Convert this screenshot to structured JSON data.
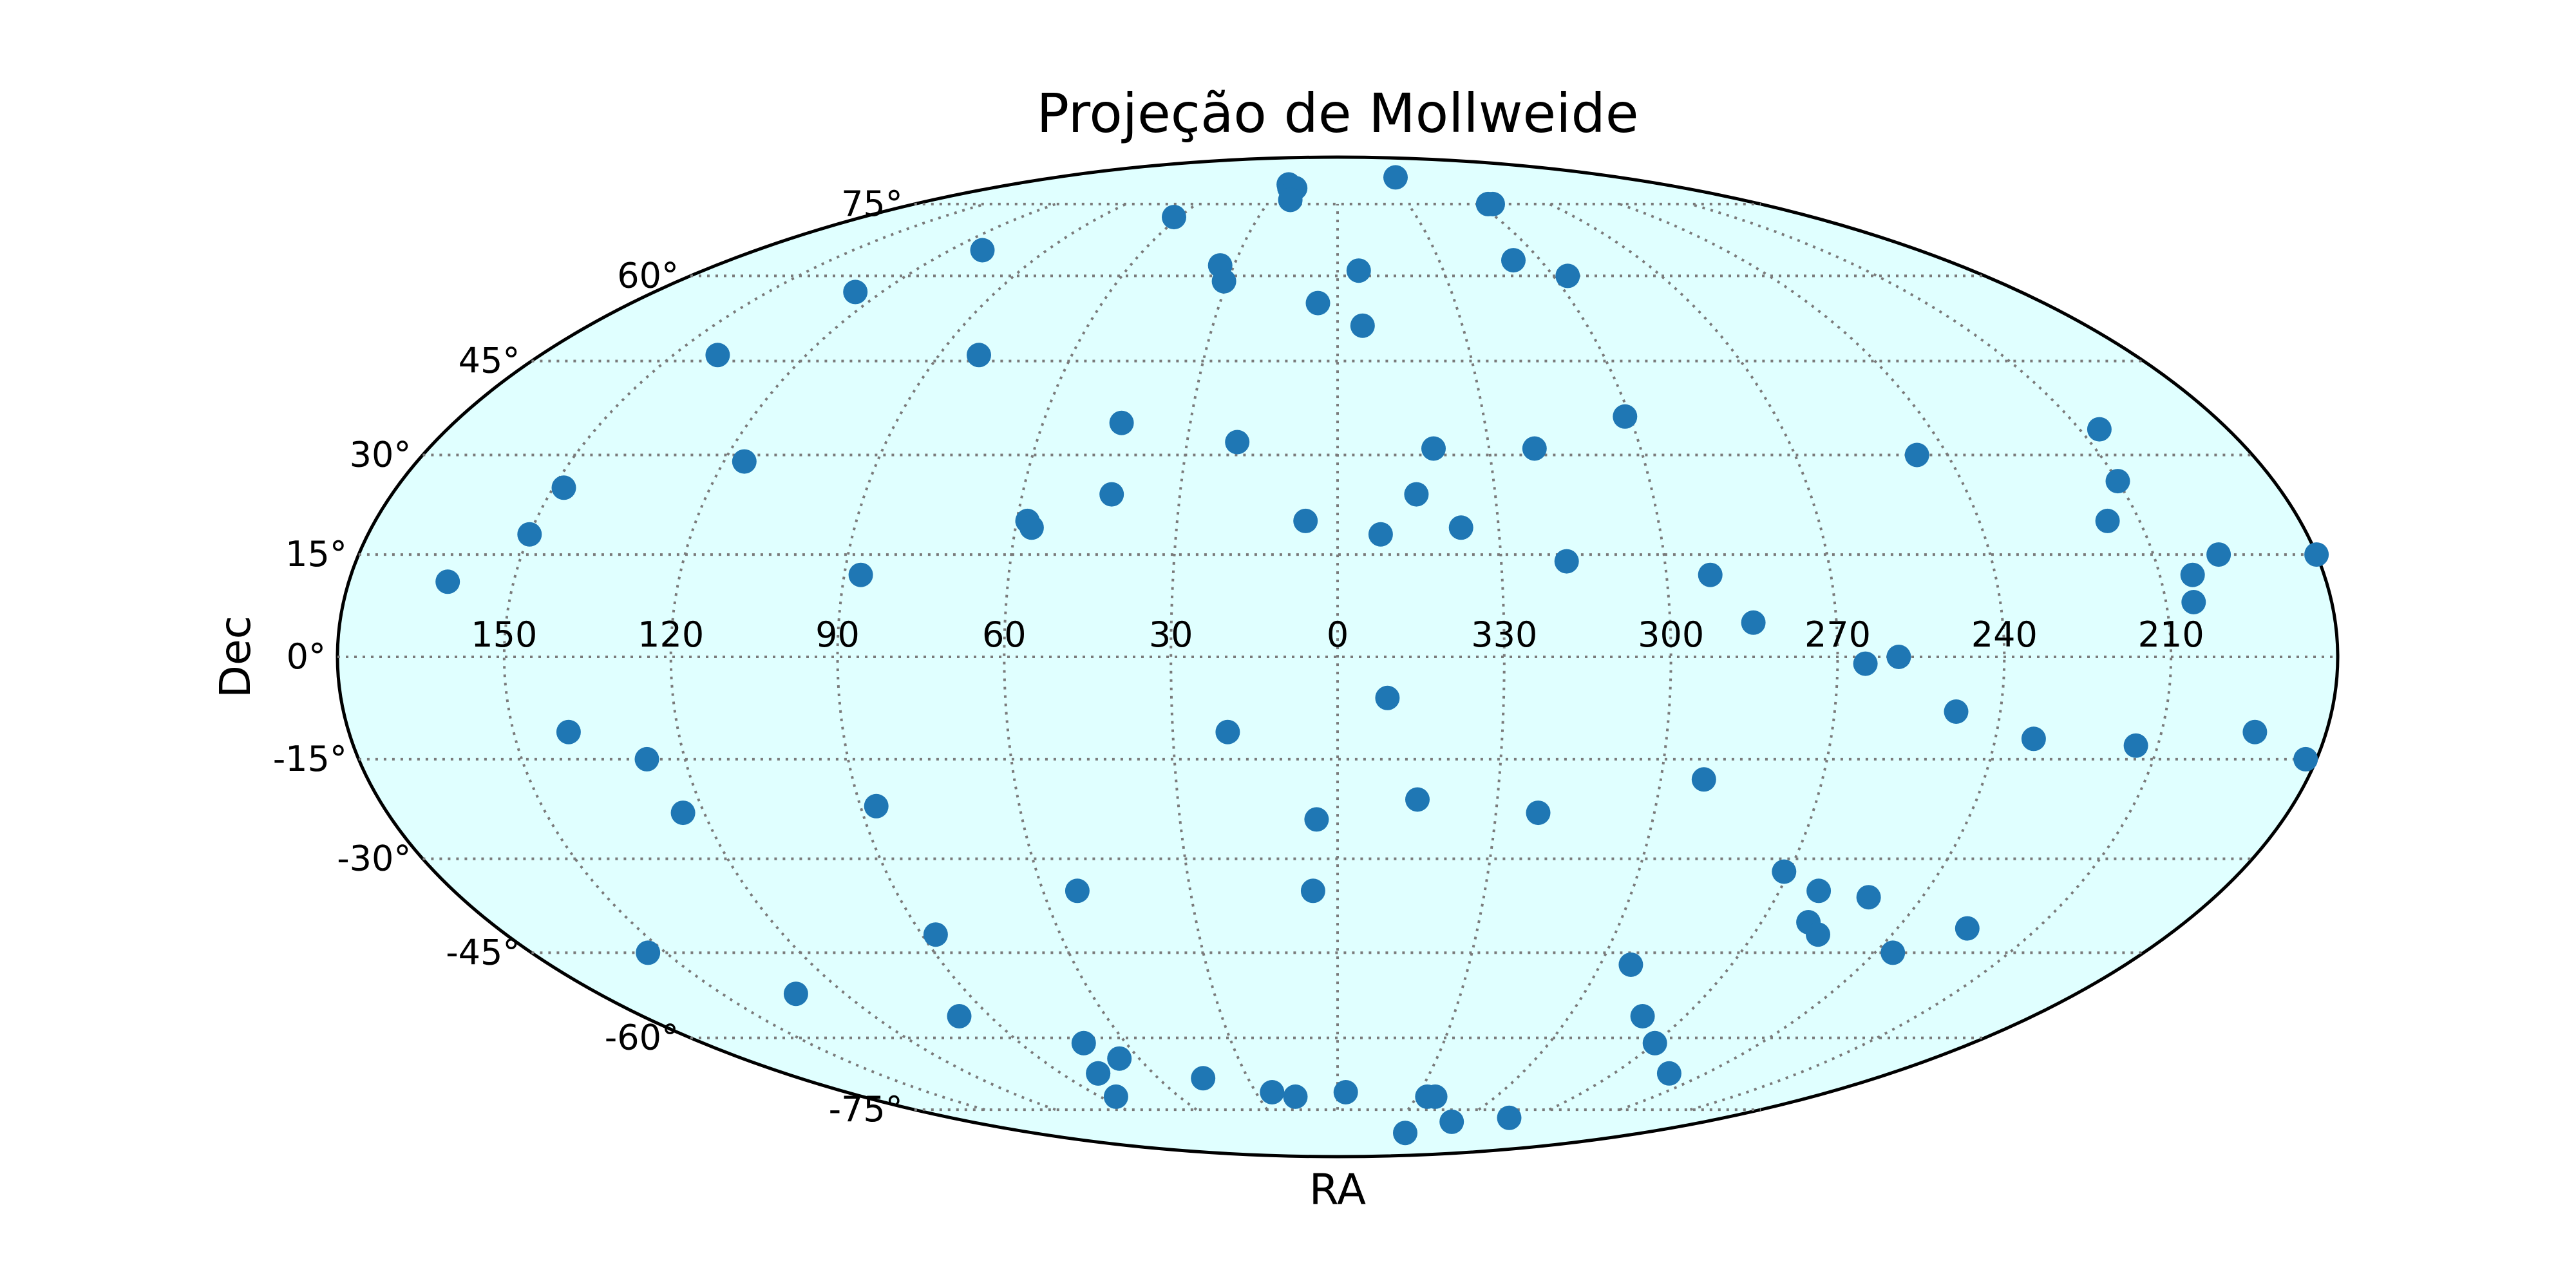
{
  "chart_data": {
    "type": "scatter",
    "projection": "mollweide",
    "title": "Projeção de Mollweide",
    "xlabel": "RA",
    "ylabel": "Dec",
    "grid": true,
    "background_color": "#e0ffff",
    "point_color": "#1f77b4",
    "x_ticks": [
      "150",
      "120",
      "90",
      "60",
      "30",
      "0",
      "330",
      "300",
      "270",
      "240",
      "210"
    ],
    "y_ticks": [
      "75°",
      "60°",
      "45°",
      "30°",
      "15°",
      "0°",
      "-15°",
      "-30°",
      "-45°",
      "-60°",
      "-75°"
    ],
    "x_tick_values": [
      150,
      120,
      90,
      60,
      30,
      0,
      -30,
      -60,
      -90,
      -120,
      -150
    ],
    "y_tick_values": [
      75,
      60,
      45,
      30,
      15,
      0,
      -15,
      -30,
      -45,
      -60,
      -75
    ],
    "points": [
      {
        "ra": 162,
        "dec": 11
      },
      {
        "ra": 150,
        "dec": 18
      },
      {
        "ra": 148,
        "dec": 25
      },
      {
        "ra": 140,
        "dec": 46
      },
      {
        "ra": 127,
        "dec": 57
      },
      {
        "ra": 116,
        "dec": 29
      },
      {
        "ra": 110,
        "dec": 65
      },
      {
        "ra": 87,
        "dec": 12
      },
      {
        "ra": 81,
        "dec": 46
      },
      {
        "ra": 58,
        "dec": 20
      },
      {
        "ra": 57,
        "dec": 19
      },
      {
        "ra": 62,
        "dec": 72
      },
      {
        "ra": 44,
        "dec": 35
      },
      {
        "ra": 43,
        "dec": 24
      },
      {
        "ra": 34,
        "dec": 62
      },
      {
        "ra": 31,
        "dec": 59
      },
      {
        "ra": 27,
        "dec": 80
      },
      {
        "ra": 25,
        "dec": 79
      },
      {
        "ra": 22,
        "dec": 79
      },
      {
        "ra": 21,
        "dec": 76
      },
      {
        "ra": 20,
        "dec": 32
      },
      {
        "ra": 5,
        "dec": 55
      },
      {
        "ra": 6,
        "dec": 20
      },
      {
        "ra": -6,
        "dec": 61
      },
      {
        "ra": -6,
        "dec": 51
      },
      {
        "ra": -8,
        "dec": 18
      },
      {
        "ra": -15,
        "dec": 24
      },
      {
        "ra": -19,
        "dec": 31
      },
      {
        "ra": -23,
        "dec": 19
      },
      {
        "ra": -37,
        "dec": 82
      },
      {
        "ra": -39,
        "dec": 31
      },
      {
        "ra": -42,
        "dec": 14
      },
      {
        "ra": -52,
        "dec": 63
      },
      {
        "ra": -59,
        "dec": 36
      },
      {
        "ra": -64,
        "dec": 75
      },
      {
        "ra": -66,
        "dec": 75
      },
      {
        "ra": -64,
        "dec": 60
      },
      {
        "ra": -68,
        "dec": 12
      },
      {
        "ra": -75,
        "dec": 5
      },
      {
        "ra": -114,
        "dec": 30
      },
      {
        "ra": -144,
        "dec": 20
      },
      {
        "ra": -154,
        "dec": 34
      },
      {
        "ra": -150,
        "dec": 26
      },
      {
        "ra": -155,
        "dec": 8
      },
      {
        "ra": -156,
        "dec": 12
      },
      {
        "ra": -162,
        "dec": 15
      },
      {
        "ra": -180,
        "dec": 15
      },
      {
        "ra": -95,
        "dec": -1
      },
      {
        "ra": -101,
        "dec": 0
      },
      {
        "ra": -112,
        "dec": -8
      },
      {
        "ra": -127,
        "dec": -12
      },
      {
        "ra": -146,
        "dec": -13
      },
      {
        "ra": -167,
        "dec": -11
      },
      {
        "ra": -178,
        "dec": -15
      },
      {
        "ra": 140,
        "dec": -11
      },
      {
        "ra": 127,
        "dec": -15
      },
      {
        "ra": 124,
        "dec": -23
      },
      {
        "ra": 154,
        "dec": -45
      },
      {
        "ra": 132,
        "dec": -52
      },
      {
        "ra": 87,
        "dec": -22
      },
      {
        "ra": 87,
        "dec": -42
      },
      {
        "ra": 98,
        "dec": -56
      },
      {
        "ra": 78,
        "dec": -67
      },
      {
        "ra": 78,
        "dec": -67
      },
      {
        "ra": 84,
        "dec": -72
      },
      {
        "ra": 72,
        "dec": -61
      },
      {
        "ra": 66,
        "dec": -64
      },
      {
        "ra": 53,
        "dec": -35
      },
      {
        "ra": 45,
        "dec": -68
      },
      {
        "ra": 24,
        "dec": -71
      },
      {
        "ra": 4,
        "dec": -24
      },
      {
        "ra": 5,
        "dec": -35
      },
      {
        "ra": 20,
        "dec": -11
      },
      {
        "ra": -9,
        "dec": -6
      },
      {
        "ra": -15,
        "dec": -21
      },
      {
        "ra": -38,
        "dec": -23
      },
      {
        "ra": -68,
        "dec": -18
      },
      {
        "ra": -89,
        "dec": -32
      },
      {
        "ra": -98,
        "dec": -35
      },
      {
        "ra": -100,
        "dec": -40
      },
      {
        "ra": -104,
        "dec": -42
      },
      {
        "ra": -109,
        "dec": -36
      },
      {
        "ra": -124,
        "dec": -45
      },
      {
        "ra": -135,
        "dec": -41
      },
      {
        "ra": -67,
        "dec": -47
      },
      {
        "ra": -79,
        "dec": -56
      },
      {
        "ra": -90,
        "dec": -61
      },
      {
        "ra": -108,
        "dec": -67
      },
      {
        "ra": 16,
        "dec": -72
      },
      {
        "ra": -3,
        "dec": -71
      },
      {
        "ra": -34,
        "dec": -72
      },
      {
        "ra": -37,
        "dec": -72
      },
      {
        "ra": -56,
        "dec": -78
      },
      {
        "ra": -80,
        "dec": -77
      },
      {
        "ra": -40,
        "dec": -81
      }
    ]
  }
}
